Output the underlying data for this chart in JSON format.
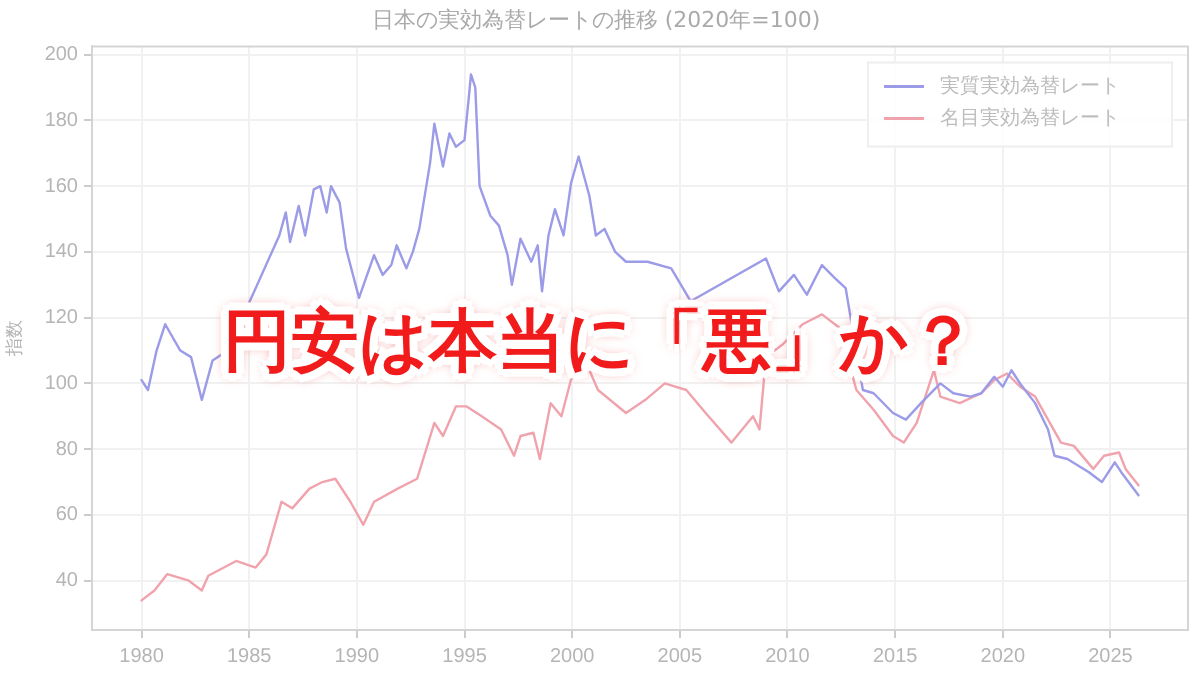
{
  "chart_data": {
    "type": "line",
    "title": "日本の実効為替レートの推移 (2020年=100)",
    "ylabel": "指数",
    "annotations": [
      "円安は本当に「悪」か？"
    ],
    "xlim": [
      1977.7,
      2028.6
    ],
    "ylim": [
      25,
      202.5
    ],
    "xticks": [
      1980,
      1985,
      1990,
      1995,
      2000,
      2005,
      2010,
      2015,
      2020,
      2025
    ],
    "yticks": [
      40,
      60,
      80,
      100,
      120,
      140,
      160,
      180,
      200
    ],
    "grid": true,
    "legend": "top right",
    "marker": "none",
    "line_style": "solid",
    "series": [
      {
        "name": "実質実効為替レート",
        "color": "#9b9be8",
        "x": [
          1980,
          1980.3,
          1980.7,
          1981.1,
          1981.8,
          1982.3,
          1982.8,
          1983.3,
          1984,
          1985,
          1985.8,
          1986.1,
          1986.4,
          1986.7,
          1986.9,
          1987.3,
          1987.6,
          1988,
          1988.3,
          1988.6,
          1988.8,
          1989.2,
          1989.5,
          1990.1,
          1990.5,
          1990.8,
          1991.2,
          1991.6,
          1991.85,
          1992.3,
          1992.6,
          1992.9,
          1993.4,
          1993.6,
          1994,
          1994.3,
          1994.6,
          1995,
          1995.2,
          1995.3,
          1995.5,
          1995.7,
          1996.2,
          1996.6,
          1997,
          1997.2,
          1997.6,
          1998.1,
          1998.4,
          1998.6,
          1998.9,
          1999.2,
          1999.6,
          1999.95,
          2000.3,
          2000.8,
          2001.1,
          2001.5,
          2002,
          2002.5,
          2003.5,
          2004.6,
          2005.5,
          2006.5,
          2007.4,
          2008.2,
          2008.6,
          2009,
          2009.6,
          2010.3,
          2010.9,
          2011.6,
          2012.2,
          2012.7,
          2013.2,
          2013.5,
          2014,
          2014.9,
          2015.5,
          2016.2,
          2016.8,
          2017.1,
          2017.7,
          2018.5,
          2019,
          2019.6,
          2020,
          2020.4,
          2020.8,
          2021.5,
          2022.1,
          2022.4,
          2023,
          2024,
          2024.6,
          2025.2,
          2025.5,
          2026.3
        ],
        "values": [
          101,
          98,
          110,
          118,
          110,
          108,
          95,
          107,
          110,
          null,
          null,
          null,
          145,
          152,
          143,
          154,
          145,
          159,
          160,
          152,
          160,
          155,
          141,
          126,
          null,
          139,
          133,
          136,
          142,
          135,
          140,
          147,
          167,
          179,
          166,
          176,
          172,
          174,
          187,
          194,
          190,
          160,
          151,
          148,
          139,
          130,
          144,
          137,
          142,
          128,
          145,
          153,
          145,
          161,
          169,
          157,
          145,
          147,
          140,
          137,
          137,
          135,
          125,
          null,
          null,
          null,
          null,
          138,
          128,
          133,
          127,
          136,
          132,
          129,
          null,
          98,
          97,
          91,
          89,
          94,
          null,
          100,
          97,
          96,
          97,
          102,
          99,
          104,
          100,
          94,
          86,
          78,
          77,
          73,
          70,
          76,
          73,
          66
        ]
      },
      {
        "name": "名目実効為替レート",
        "color": "#f0a3ad",
        "x": [
          1980,
          1980.6,
          1981.2,
          1982.2,
          1982.8,
          1983.1,
          1984.4,
          1985.3,
          1985.8,
          1986.5,
          1987,
          1987.8,
          1988.4,
          1989,
          1989.7,
          1990.3,
          1990.8,
          1991.9,
          1992.8,
          1993.6,
          1994,
          1994.6,
          1995.1,
          1995.4,
          1995.8,
          1996.7,
          1997.3,
          1997.6,
          1998.2,
          1998.5,
          1999,
          1999.5,
          2000.1,
          2000.6,
          2001.2,
          2002.5,
          2003.4,
          2004.3,
          2005.3,
          2006.2,
          2007.4,
          2008.4,
          2008.7,
          2009,
          2009.8,
          2010.7,
          2011.6,
          2012.4,
          2013.2,
          2014,
          2014.9,
          2015.4,
          2016,
          2016.8,
          2017.1,
          2018,
          2019,
          2019.6,
          2020.2,
          2020.8,
          2021.5,
          2022.1,
          2022.7,
          2023.3,
          2024.2,
          2024.7,
          2025.4,
          2025.7,
          2026.3
        ],
        "values": [
          34,
          37,
          42,
          40,
          37,
          41.5,
          46,
          44,
          48,
          64,
          62,
          68,
          70,
          71,
          64,
          57,
          64,
          68,
          71,
          88,
          84,
          93,
          93,
          null,
          90,
          86,
          78,
          84,
          85,
          77,
          94,
          90,
          105,
          107,
          98,
          91,
          95,
          100,
          98,
          91,
          82,
          90,
          86,
          108,
          112,
          118,
          121,
          117,
          98,
          92,
          84,
          82,
          88,
          104,
          96,
          94,
          97,
          101,
          103,
          99,
          96,
          89,
          82,
          81,
          74,
          78,
          79,
          74,
          69
        ]
      }
    ]
  }
}
